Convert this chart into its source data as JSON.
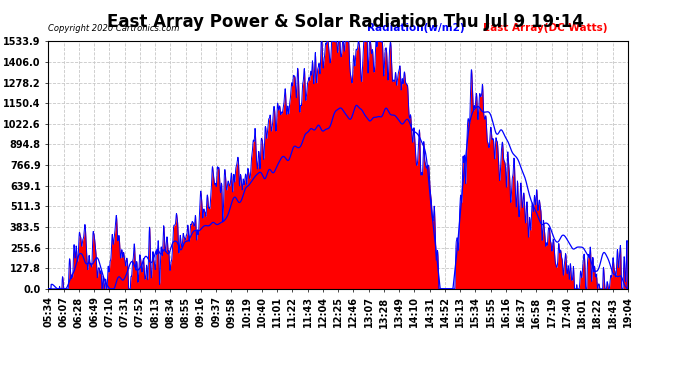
{
  "title": "East Array Power & Solar Radiation Thu Jul 9 19:14",
  "copyright": "Copyright 2020 Cartronics.com",
  "legend_radiation": "Radiation(w/m2)",
  "legend_east": "East Array(DC Watts)",
  "ylabel_values": [
    0.0,
    127.8,
    255.6,
    383.5,
    511.3,
    639.1,
    766.9,
    894.8,
    1022.6,
    1150.4,
    1278.2,
    1406.0,
    1533.9
  ],
  "ymax": 1533.9,
  "ymin": 0.0,
  "background_color": "#ffffff",
  "plot_bg_color": "#ffffff",
  "radiation_fill_color": "#ff0000",
  "radiation_line_color": "#0000ff",
  "east_array_line_color": "#0000ff",
  "grid_color": "#c8c8c8",
  "title_fontsize": 12,
  "tick_fontsize": 7,
  "x_tick_labels": [
    "05:34",
    "06:07",
    "06:28",
    "06:49",
    "07:10",
    "07:31",
    "07:52",
    "08:13",
    "08:34",
    "08:55",
    "09:16",
    "09:37",
    "09:58",
    "10:19",
    "10:40",
    "11:01",
    "11:22",
    "11:43",
    "12:04",
    "12:25",
    "12:46",
    "13:07",
    "13:28",
    "13:49",
    "14:10",
    "14:31",
    "14:52",
    "15:13",
    "15:34",
    "15:55",
    "16:16",
    "16:37",
    "16:58",
    "17:19",
    "17:40",
    "18:01",
    "18:22",
    "18:43",
    "19:04"
  ]
}
